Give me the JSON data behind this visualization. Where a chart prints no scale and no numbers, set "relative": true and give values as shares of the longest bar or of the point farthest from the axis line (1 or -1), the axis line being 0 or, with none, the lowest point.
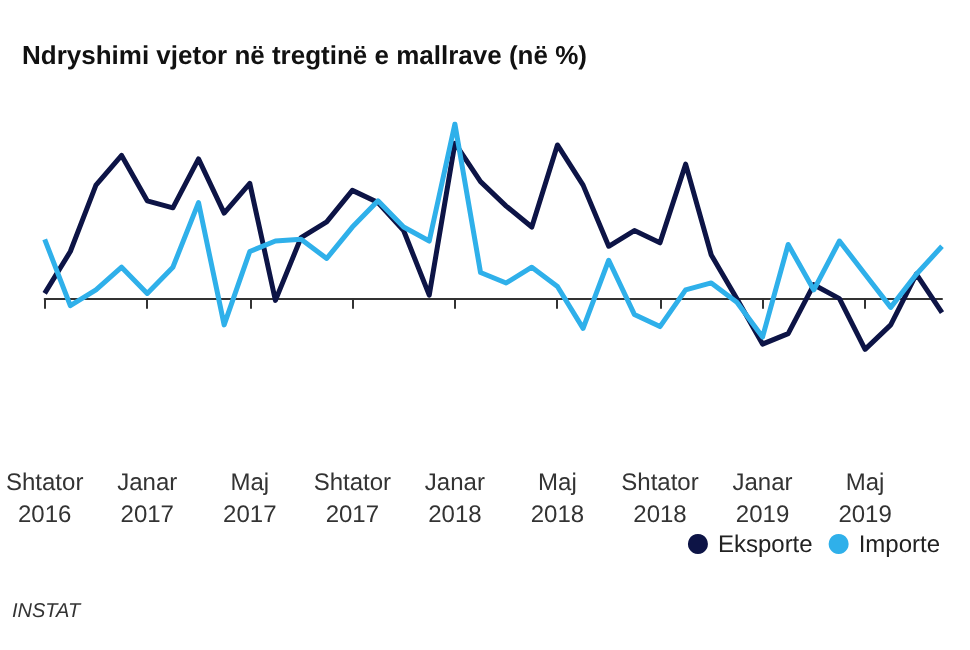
{
  "chart_data": {
    "type": "line",
    "title": "Ndryshimi vjetor në tregtinë e mallrave (në %)",
    "relative": true,
    "categories": [
      "Shtator\n2016",
      null,
      null,
      null,
      "Janar\n2017",
      null,
      null,
      null,
      "Maj\n2017",
      null,
      null,
      null,
      "Shtator\n2017",
      null,
      null,
      null,
      "Janar\n2018",
      null,
      null,
      null,
      "Maj\n2018",
      null,
      null,
      null,
      "Shtator\n2018",
      null,
      null,
      null,
      "Janar\n2019",
      null,
      null,
      null,
      "Maj\n2019",
      null,
      null,
      null
    ],
    "series": [
      {
        "name": "Eksporte",
        "color": "#0d1446",
        "values": [
          0.03,
          0.27,
          0.65,
          0.82,
          0.56,
          0.52,
          0.8,
          0.49,
          0.66,
          -0.01,
          0.35,
          0.44,
          0.62,
          0.55,
          0.39,
          0.02,
          0.89,
          0.67,
          0.53,
          0.41,
          0.88,
          0.65,
          0.3,
          0.39,
          0.32,
          0.77,
          0.25,
          0.0,
          -0.26,
          -0.2,
          0.08,
          0.0,
          -0.29,
          -0.15,
          0.14,
          -0.08
        ]
      },
      {
        "name": "Importe",
        "color": "#2fb0ea",
        "values": [
          0.34,
          -0.04,
          0.05,
          0.18,
          0.03,
          0.18,
          0.55,
          -0.15,
          0.27,
          0.33,
          0.34,
          0.23,
          0.41,
          0.56,
          0.41,
          0.33,
          1,
          0.15,
          0.09,
          0.18,
          0.07,
          -0.17,
          0.22,
          -0.09,
          -0.16,
          0.05,
          0.09,
          -0.02,
          -0.22,
          0.31,
          0.05,
          0.33,
          0.14,
          -0.05,
          0.14,
          0.3
        ]
      }
    ],
    "legend": "bottom right",
    "marker": "none",
    "line_style": "solid",
    "annotations": [
      "INSTAT"
    ]
  }
}
